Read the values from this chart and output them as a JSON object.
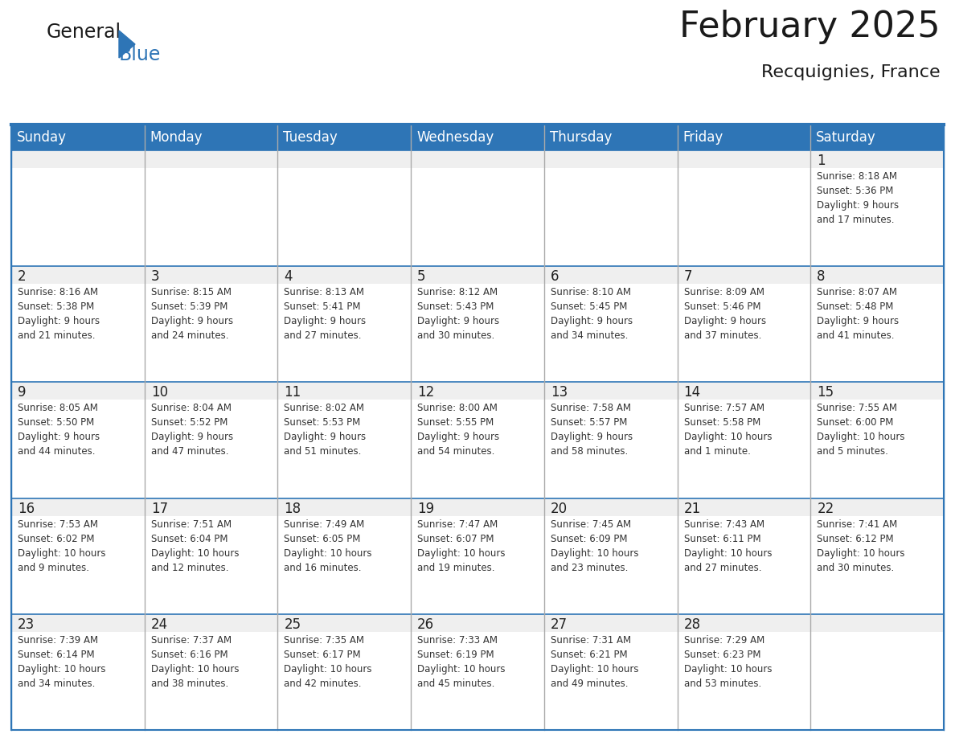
{
  "title": "February 2025",
  "subtitle": "Recquignies, France",
  "header_bg": "#2E75B6",
  "header_text": "#FFFFFF",
  "cell_bg_top": "#EFEFEF",
  "cell_bg_bottom": "#FFFFFF",
  "border_color": "#2E75B6",
  "day_headers": [
    "Sunday",
    "Monday",
    "Tuesday",
    "Wednesday",
    "Thursday",
    "Friday",
    "Saturday"
  ],
  "title_fontsize": 32,
  "subtitle_fontsize": 16,
  "header_fontsize": 12,
  "day_num_fontsize": 12,
  "info_fontsize": 8.5,
  "weeks": [
    [
      {
        "day": "",
        "info": ""
      },
      {
        "day": "",
        "info": ""
      },
      {
        "day": "",
        "info": ""
      },
      {
        "day": "",
        "info": ""
      },
      {
        "day": "",
        "info": ""
      },
      {
        "day": "",
        "info": ""
      },
      {
        "day": "1",
        "info": "Sunrise: 8:18 AM\nSunset: 5:36 PM\nDaylight: 9 hours\nand 17 minutes."
      }
    ],
    [
      {
        "day": "2",
        "info": "Sunrise: 8:16 AM\nSunset: 5:38 PM\nDaylight: 9 hours\nand 21 minutes."
      },
      {
        "day": "3",
        "info": "Sunrise: 8:15 AM\nSunset: 5:39 PM\nDaylight: 9 hours\nand 24 minutes."
      },
      {
        "day": "4",
        "info": "Sunrise: 8:13 AM\nSunset: 5:41 PM\nDaylight: 9 hours\nand 27 minutes."
      },
      {
        "day": "5",
        "info": "Sunrise: 8:12 AM\nSunset: 5:43 PM\nDaylight: 9 hours\nand 30 minutes."
      },
      {
        "day": "6",
        "info": "Sunrise: 8:10 AM\nSunset: 5:45 PM\nDaylight: 9 hours\nand 34 minutes."
      },
      {
        "day": "7",
        "info": "Sunrise: 8:09 AM\nSunset: 5:46 PM\nDaylight: 9 hours\nand 37 minutes."
      },
      {
        "day": "8",
        "info": "Sunrise: 8:07 AM\nSunset: 5:48 PM\nDaylight: 9 hours\nand 41 minutes."
      }
    ],
    [
      {
        "day": "9",
        "info": "Sunrise: 8:05 AM\nSunset: 5:50 PM\nDaylight: 9 hours\nand 44 minutes."
      },
      {
        "day": "10",
        "info": "Sunrise: 8:04 AM\nSunset: 5:52 PM\nDaylight: 9 hours\nand 47 minutes."
      },
      {
        "day": "11",
        "info": "Sunrise: 8:02 AM\nSunset: 5:53 PM\nDaylight: 9 hours\nand 51 minutes."
      },
      {
        "day": "12",
        "info": "Sunrise: 8:00 AM\nSunset: 5:55 PM\nDaylight: 9 hours\nand 54 minutes."
      },
      {
        "day": "13",
        "info": "Sunrise: 7:58 AM\nSunset: 5:57 PM\nDaylight: 9 hours\nand 58 minutes."
      },
      {
        "day": "14",
        "info": "Sunrise: 7:57 AM\nSunset: 5:58 PM\nDaylight: 10 hours\nand 1 minute."
      },
      {
        "day": "15",
        "info": "Sunrise: 7:55 AM\nSunset: 6:00 PM\nDaylight: 10 hours\nand 5 minutes."
      }
    ],
    [
      {
        "day": "16",
        "info": "Sunrise: 7:53 AM\nSunset: 6:02 PM\nDaylight: 10 hours\nand 9 minutes."
      },
      {
        "day": "17",
        "info": "Sunrise: 7:51 AM\nSunset: 6:04 PM\nDaylight: 10 hours\nand 12 minutes."
      },
      {
        "day": "18",
        "info": "Sunrise: 7:49 AM\nSunset: 6:05 PM\nDaylight: 10 hours\nand 16 minutes."
      },
      {
        "day": "19",
        "info": "Sunrise: 7:47 AM\nSunset: 6:07 PM\nDaylight: 10 hours\nand 19 minutes."
      },
      {
        "day": "20",
        "info": "Sunrise: 7:45 AM\nSunset: 6:09 PM\nDaylight: 10 hours\nand 23 minutes."
      },
      {
        "day": "21",
        "info": "Sunrise: 7:43 AM\nSunset: 6:11 PM\nDaylight: 10 hours\nand 27 minutes."
      },
      {
        "day": "22",
        "info": "Sunrise: 7:41 AM\nSunset: 6:12 PM\nDaylight: 10 hours\nand 30 minutes."
      }
    ],
    [
      {
        "day": "23",
        "info": "Sunrise: 7:39 AM\nSunset: 6:14 PM\nDaylight: 10 hours\nand 34 minutes."
      },
      {
        "day": "24",
        "info": "Sunrise: 7:37 AM\nSunset: 6:16 PM\nDaylight: 10 hours\nand 38 minutes."
      },
      {
        "day": "25",
        "info": "Sunrise: 7:35 AM\nSunset: 6:17 PM\nDaylight: 10 hours\nand 42 minutes."
      },
      {
        "day": "26",
        "info": "Sunrise: 7:33 AM\nSunset: 6:19 PM\nDaylight: 10 hours\nand 45 minutes."
      },
      {
        "day": "27",
        "info": "Sunrise: 7:31 AM\nSunset: 6:21 PM\nDaylight: 10 hours\nand 49 minutes."
      },
      {
        "day": "28",
        "info": "Sunrise: 7:29 AM\nSunset: 6:23 PM\nDaylight: 10 hours\nand 53 minutes."
      },
      {
        "day": "",
        "info": ""
      }
    ]
  ],
  "logo_general_color": "#1a1a1a",
  "logo_blue_color": "#2E75B6",
  "logo_triangle_color": "#2E75B6"
}
